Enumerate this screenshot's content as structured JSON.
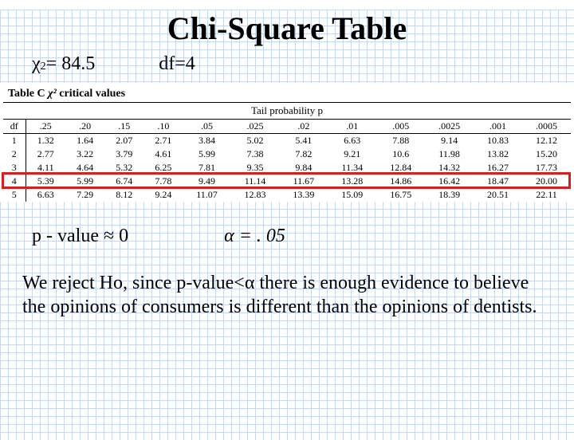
{
  "title": "Chi-Square Table",
  "chi_stat": {
    "symbol": "χ",
    "exp": "2",
    "eq": " = 84.5"
  },
  "df_label": "df=4",
  "table": {
    "caption_prefix": "Table C ",
    "caption_chi": "χ²",
    "caption_rest": " critical values",
    "tail_label": "Tail probability p",
    "df_header": "df",
    "p_headers": [
      ".25",
      ".20",
      ".15",
      ".10",
      ".05",
      ".025",
      ".02",
      ".01",
      ".005",
      ".0025",
      ".001",
      ".0005"
    ],
    "rows": [
      {
        "df": "1",
        "vals": [
          "1.32",
          "1.64",
          "2.07",
          "2.71",
          "3.84",
          "5.02",
          "5.41",
          "6.63",
          "7.88",
          "9.14",
          "10.83",
          "12.12"
        ]
      },
      {
        "df": "2",
        "vals": [
          "2.77",
          "3.22",
          "3.79",
          "4.61",
          "5.99",
          "7.38",
          "7.82",
          "9.21",
          "10.6",
          "11.98",
          "13.82",
          "15.20"
        ]
      },
      {
        "df": "3",
        "vals": [
          "4.11",
          "4.64",
          "5.32",
          "6.25",
          "7.81",
          "9.35",
          "9.84",
          "11.34",
          "12.84",
          "14.32",
          "16.27",
          "17.73"
        ]
      },
      {
        "df": "4",
        "vals": [
          "5.39",
          "5.99",
          "6.74",
          "7.78",
          "9.49",
          "11.14",
          "11.67",
          "13.28",
          "14.86",
          "16.42",
          "18.47",
          "20.00"
        ]
      },
      {
        "df": "5",
        "vals": [
          "6.63",
          "7.29",
          "8.12",
          "9.24",
          "11.07",
          "12.83",
          "13.39",
          "15.09",
          "16.75",
          "18.39",
          "20.51",
          "22.11"
        ]
      }
    ],
    "highlight_row_index": 3,
    "highlight_color": "#d42020"
  },
  "pvalue_label": "p - value ≈ 0",
  "alpha_label": "α = . 05",
  "conclusion": "We reject Ho, since p-value<α there is enough evidence to believe the opinions of consumers is different than the opinions of dentists.",
  "colors": {
    "grid_line": "#c7d7ee",
    "background": "#ffffff",
    "text": "#000000"
  },
  "fonts": {
    "body": "Times New Roman",
    "title_size_pt": 30,
    "body_size_pt": 18,
    "table_size_pt": 9
  }
}
